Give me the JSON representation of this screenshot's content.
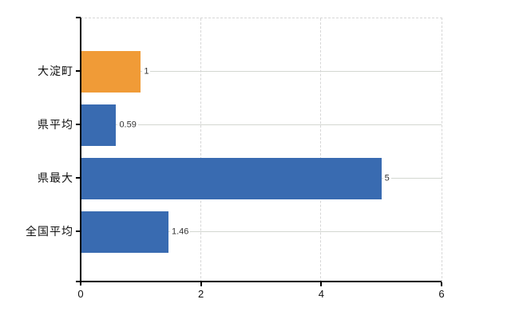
{
  "chart_data": {
    "type": "bar",
    "orientation": "horizontal",
    "title": "",
    "xlabel": "",
    "ylabel": "",
    "categories": [
      "大淀町",
      "県平均",
      "県最大",
      "全国平均"
    ],
    "values": [
      1,
      0.59,
      5,
      1.46
    ],
    "value_labels": [
      "1",
      "0.59",
      "5",
      "1.46"
    ],
    "bar_colors": [
      "#f09b37",
      "#396bb1",
      "#396bb1",
      "#396bb1"
    ],
    "xlim": [
      0,
      6
    ],
    "x_ticks": [
      0,
      2,
      4,
      6
    ],
    "x_tick_labels": [
      "0",
      "2",
      "4",
      "6"
    ],
    "grid": "vertical dashed at x ticks, horizontal solid at category centers",
    "grid_color": "#d6d6d6",
    "axis_color": "#000000",
    "legend_position": "none"
  }
}
